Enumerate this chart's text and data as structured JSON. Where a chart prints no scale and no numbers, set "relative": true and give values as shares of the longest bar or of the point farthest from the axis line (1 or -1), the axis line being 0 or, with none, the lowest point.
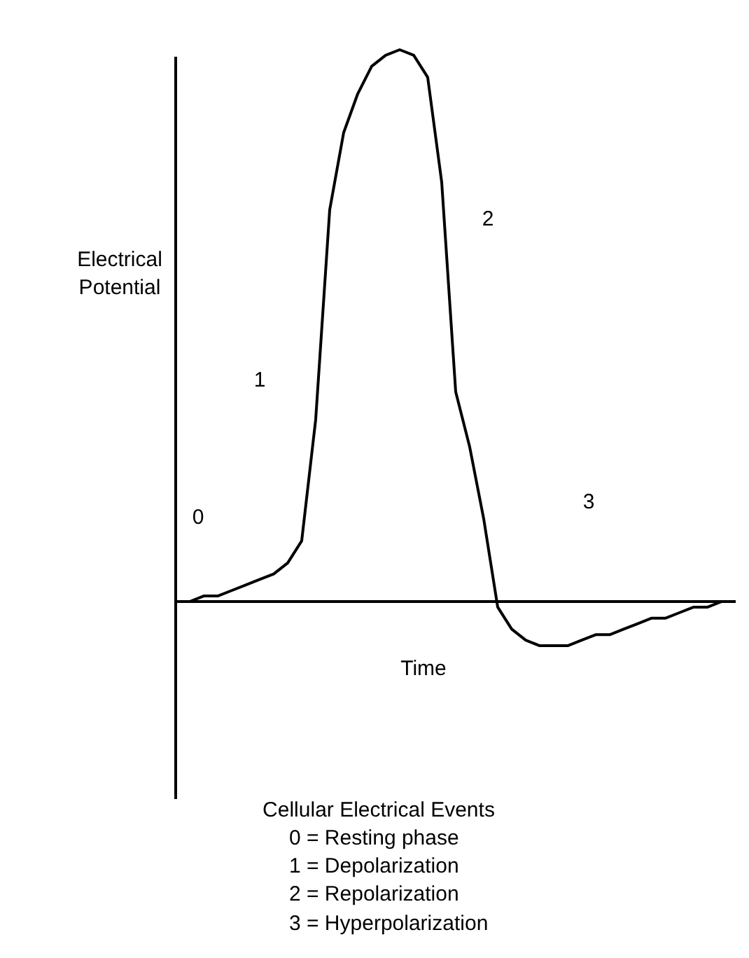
{
  "chart_data": {
    "type": "line",
    "relative": true,
    "title": "Cellular Electrical Events",
    "xlabel": "Time",
    "ylabel": "Electrical Potential",
    "categories": [
      null,
      null,
      null,
      null,
      null,
      null,
      null,
      null,
      null,
      null,
      null,
      null,
      null,
      null,
      null,
      null,
      null,
      null,
      null,
      null,
      null,
      null,
      null,
      null,
      null,
      null,
      null,
      null,
      null,
      null,
      null,
      null,
      null,
      null,
      null,
      null,
      null,
      null,
      null,
      null,
      null
    ],
    "series": [
      {
        "color": "#000000",
        "values": [
          0,
          0,
          0.01,
          0.01,
          0.02,
          0.03,
          0.04,
          0.05,
          0.07,
          0.11,
          0.33,
          0.71,
          0.85,
          0.92,
          0.97,
          0.99,
          1,
          0.99,
          0.95,
          0.76,
          0.38,
          0.28,
          0.15,
          -0.01,
          -0.05,
          -0.07,
          -0.08,
          -0.08,
          -0.08,
          -0.07,
          -0.06,
          -0.06,
          -0.05,
          -0.04,
          -0.03,
          -0.03,
          -0.02,
          -0.01,
          -0.01,
          0,
          0
        ]
      }
    ],
    "line_style": "solid",
    "marker": "none",
    "annotations": [
      "0",
      "1",
      "2",
      "3",
      "0 = Resting phase",
      "1 = Depolarization",
      "2 = Repolarization",
      "3 = Hyperpolarization"
    ]
  }
}
